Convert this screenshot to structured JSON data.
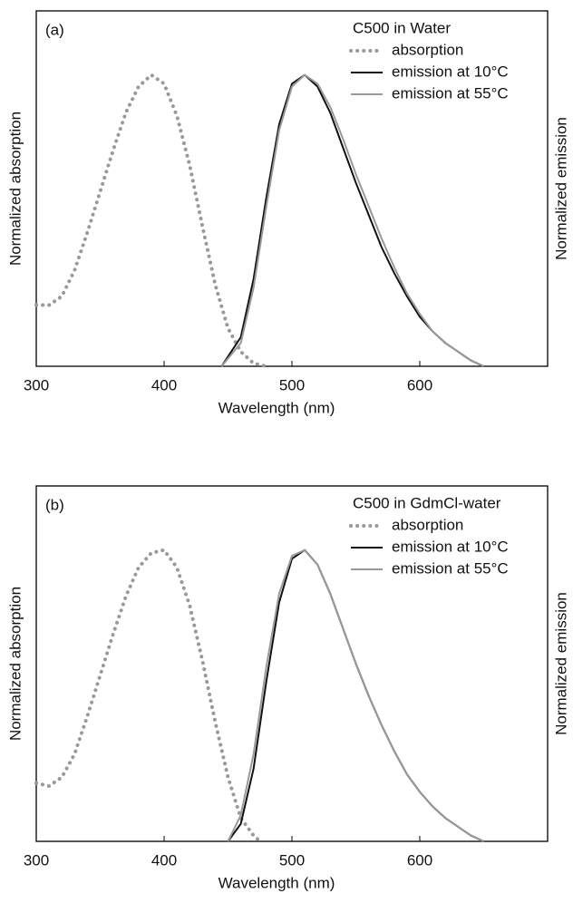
{
  "chart_data": [
    {
      "type": "line",
      "panel_label": "(a)",
      "title": "C500 in Water",
      "xlabel": "Wavelength (nm)",
      "ylabel": "Normalized absorption",
      "y2label": "Normalized emission",
      "xlim": [
        300,
        700
      ],
      "xticks": [
        300,
        400,
        500,
        600
      ],
      "ylim": [
        0,
        1.22
      ],
      "series": [
        {
          "name": "absorption",
          "color": "#999999",
          "linestyle": "dotted",
          "x": [
            300,
            310,
            320,
            330,
            340,
            350,
            360,
            370,
            380,
            390,
            400,
            410,
            420,
            430,
            440,
            450,
            460,
            470,
            480
          ],
          "values": [
            0.21,
            0.21,
            0.24,
            0.33,
            0.46,
            0.6,
            0.74,
            0.87,
            0.96,
            1.0,
            0.97,
            0.86,
            0.69,
            0.48,
            0.28,
            0.13,
            0.05,
            0.01,
            0
          ]
        },
        {
          "name": "emission at 10°C",
          "color": "#111111",
          "linestyle": "solid",
          "x": [
            445,
            460,
            470,
            480,
            490,
            500,
            510,
            520,
            530,
            540,
            550,
            560,
            570,
            580,
            590,
            600,
            610,
            620,
            630,
            640,
            650
          ],
          "values": [
            0,
            0.1,
            0.3,
            0.58,
            0.83,
            0.97,
            1.0,
            0.96,
            0.87,
            0.75,
            0.63,
            0.52,
            0.41,
            0.32,
            0.24,
            0.17,
            0.12,
            0.08,
            0.05,
            0.02,
            0
          ]
        },
        {
          "name": "emission at 55°C",
          "color": "#999999",
          "linestyle": "solid",
          "x": [
            445,
            460,
            470,
            480,
            490,
            500,
            510,
            520,
            530,
            540,
            550,
            560,
            570,
            580,
            590,
            600,
            610,
            620,
            630,
            640,
            650
          ],
          "values": [
            0,
            0.08,
            0.27,
            0.55,
            0.81,
            0.96,
            1.0,
            0.97,
            0.89,
            0.78,
            0.66,
            0.55,
            0.44,
            0.34,
            0.25,
            0.18,
            0.12,
            0.08,
            0.05,
            0.02,
            0
          ]
        }
      ]
    },
    {
      "type": "line",
      "panel_label": "(b)",
      "title": "C500 in GdmCl-water",
      "xlabel": "Wavelength (nm)",
      "ylabel": "Normalized absorption",
      "y2label": "Normalized emission",
      "xlim": [
        300,
        700
      ],
      "xticks": [
        300,
        400,
        500,
        600
      ],
      "ylim": [
        0,
        1.22
      ],
      "series": [
        {
          "name": "absorption",
          "color": "#999999",
          "linestyle": "dotted",
          "x": [
            300,
            310,
            320,
            330,
            340,
            350,
            360,
            370,
            380,
            390,
            400,
            410,
            420,
            430,
            440,
            450,
            460,
            470,
            475
          ],
          "values": [
            0.2,
            0.19,
            0.22,
            0.3,
            0.43,
            0.57,
            0.71,
            0.84,
            0.94,
            0.99,
            1.0,
            0.94,
            0.81,
            0.62,
            0.41,
            0.22,
            0.08,
            0.02,
            0
          ]
        },
        {
          "name": "emission at 10°C",
          "color": "#111111",
          "linestyle": "solid",
          "x": [
            450,
            460,
            470,
            480,
            490,
            500,
            510,
            520,
            530,
            540,
            550,
            560,
            570,
            580,
            590,
            600,
            610,
            620,
            630,
            640,
            650
          ],
          "values": [
            0,
            0.06,
            0.25,
            0.55,
            0.82,
            0.97,
            1.0,
            0.95,
            0.85,
            0.73,
            0.61,
            0.5,
            0.4,
            0.31,
            0.23,
            0.17,
            0.12,
            0.08,
            0.05,
            0.02,
            0
          ]
        },
        {
          "name": "emission at 55°C",
          "color": "#999999",
          "linestyle": "solid",
          "x": [
            450,
            460,
            470,
            480,
            490,
            500,
            510,
            520,
            530,
            540,
            550,
            560,
            570,
            580,
            590,
            600,
            610,
            620,
            630,
            640,
            650
          ],
          "values": [
            0,
            0.09,
            0.3,
            0.6,
            0.85,
            0.98,
            1.0,
            0.95,
            0.85,
            0.73,
            0.61,
            0.5,
            0.4,
            0.31,
            0.23,
            0.17,
            0.12,
            0.08,
            0.05,
            0.02,
            0
          ]
        }
      ]
    }
  ]
}
